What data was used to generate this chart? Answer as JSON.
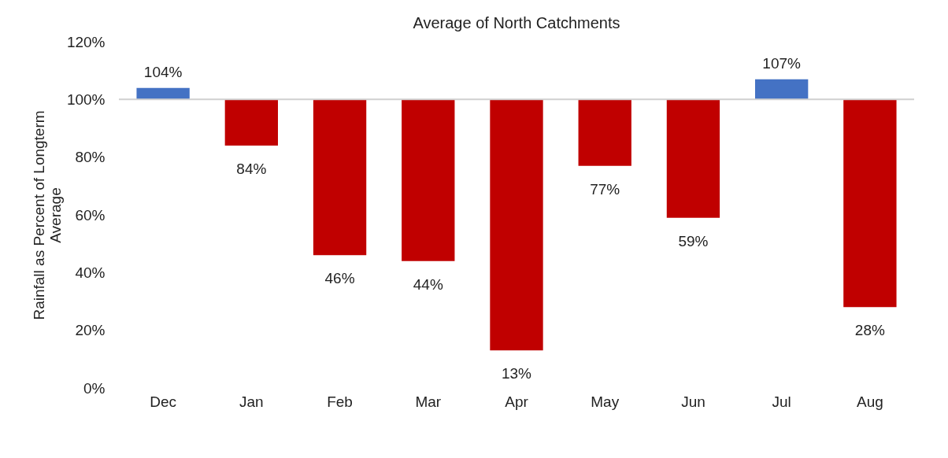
{
  "chart_data": {
    "type": "bar",
    "title": "Average of North Catchments",
    "ylabel": "Rainfall as  Percent of Longterm\nAverage",
    "categories": [
      "Dec",
      "Jan",
      "Feb",
      "Mar",
      "Apr",
      "May",
      "Jun",
      "Jul",
      "Aug"
    ],
    "base": [
      100,
      100,
      100,
      100,
      100,
      100,
      100,
      100,
      100
    ],
    "values": [
      4,
      -16,
      -54,
      -56,
      -87,
      -23,
      -41,
      7,
      -72
    ],
    "colors": [
      "#4472c4",
      "#c00000",
      "#c00000",
      "#c00000",
      "#c00000",
      "#c00000",
      "#c00000",
      "#4472c4",
      "#c00000"
    ],
    "value_labels": [
      "104%",
      "84%",
      "46%",
      "44%",
      "13%",
      "77%",
      "59%",
      "107%",
      "28%"
    ],
    "ylim": [
      0,
      120
    ],
    "yticks": [
      {
        "value": 0,
        "label": "0%"
      },
      {
        "value": 20,
        "label": "20%"
      },
      {
        "value": 40,
        "label": "40%"
      },
      {
        "value": 60,
        "label": "60%"
      },
      {
        "value": 80,
        "label": "80%"
      },
      {
        "value": 100,
        "label": "100%"
      },
      {
        "value": 120,
        "label": "120%"
      }
    ]
  }
}
